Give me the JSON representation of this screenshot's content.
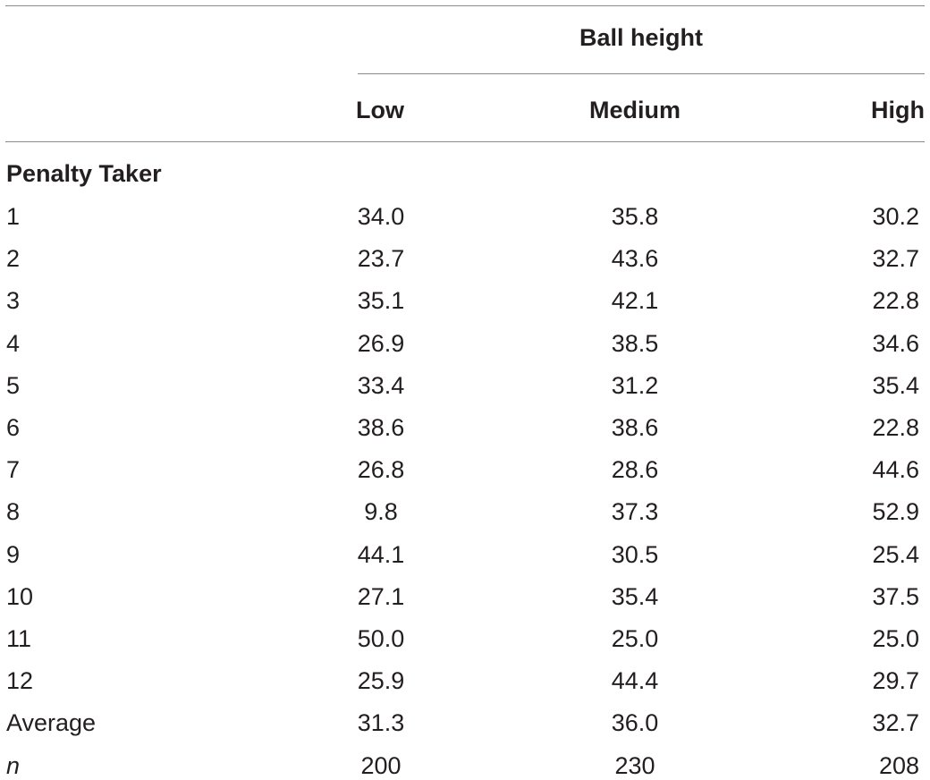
{
  "table": {
    "spanner_label": "Ball height",
    "columns": [
      "Low",
      "Medium",
      "High"
    ],
    "section_label": "Penalty Taker",
    "rows": [
      {
        "label": "1",
        "low": "34.0",
        "medium": "35.8",
        "high": "30.2"
      },
      {
        "label": "2",
        "low": "23.7",
        "medium": "43.6",
        "high": "32.7"
      },
      {
        "label": "3",
        "low": "35.1",
        "medium": "42.1",
        "high": "22.8"
      },
      {
        "label": "4",
        "low": "26.9",
        "medium": "38.5",
        "high": "34.6"
      },
      {
        "label": "5",
        "low": "33.4",
        "medium": "31.2",
        "high": "35.4"
      },
      {
        "label": "6",
        "low": "38.6",
        "medium": "38.6",
        "high": "22.8"
      },
      {
        "label": "7",
        "low": "26.8",
        "medium": "28.6",
        "high": "44.6"
      },
      {
        "label": "8",
        "low": "9.8",
        "medium": "37.3",
        "high": "52.9"
      },
      {
        "label": "9",
        "low": "44.1",
        "medium": "30.5",
        "high": "25.4"
      },
      {
        "label": "10",
        "low": "27.1",
        "medium": "35.4",
        "high": "37.5"
      },
      {
        "label": "11",
        "low": "50.0",
        "medium": "25.0",
        "high": "25.0"
      },
      {
        "label": "12",
        "low": "25.9",
        "medium": "44.4",
        "high": "29.7"
      },
      {
        "label": "Average",
        "low": "31.3",
        "medium": "36.0",
        "high": "32.7"
      },
      {
        "label": "n",
        "low": "200",
        "medium": "230",
        "high": "208"
      }
    ]
  }
}
